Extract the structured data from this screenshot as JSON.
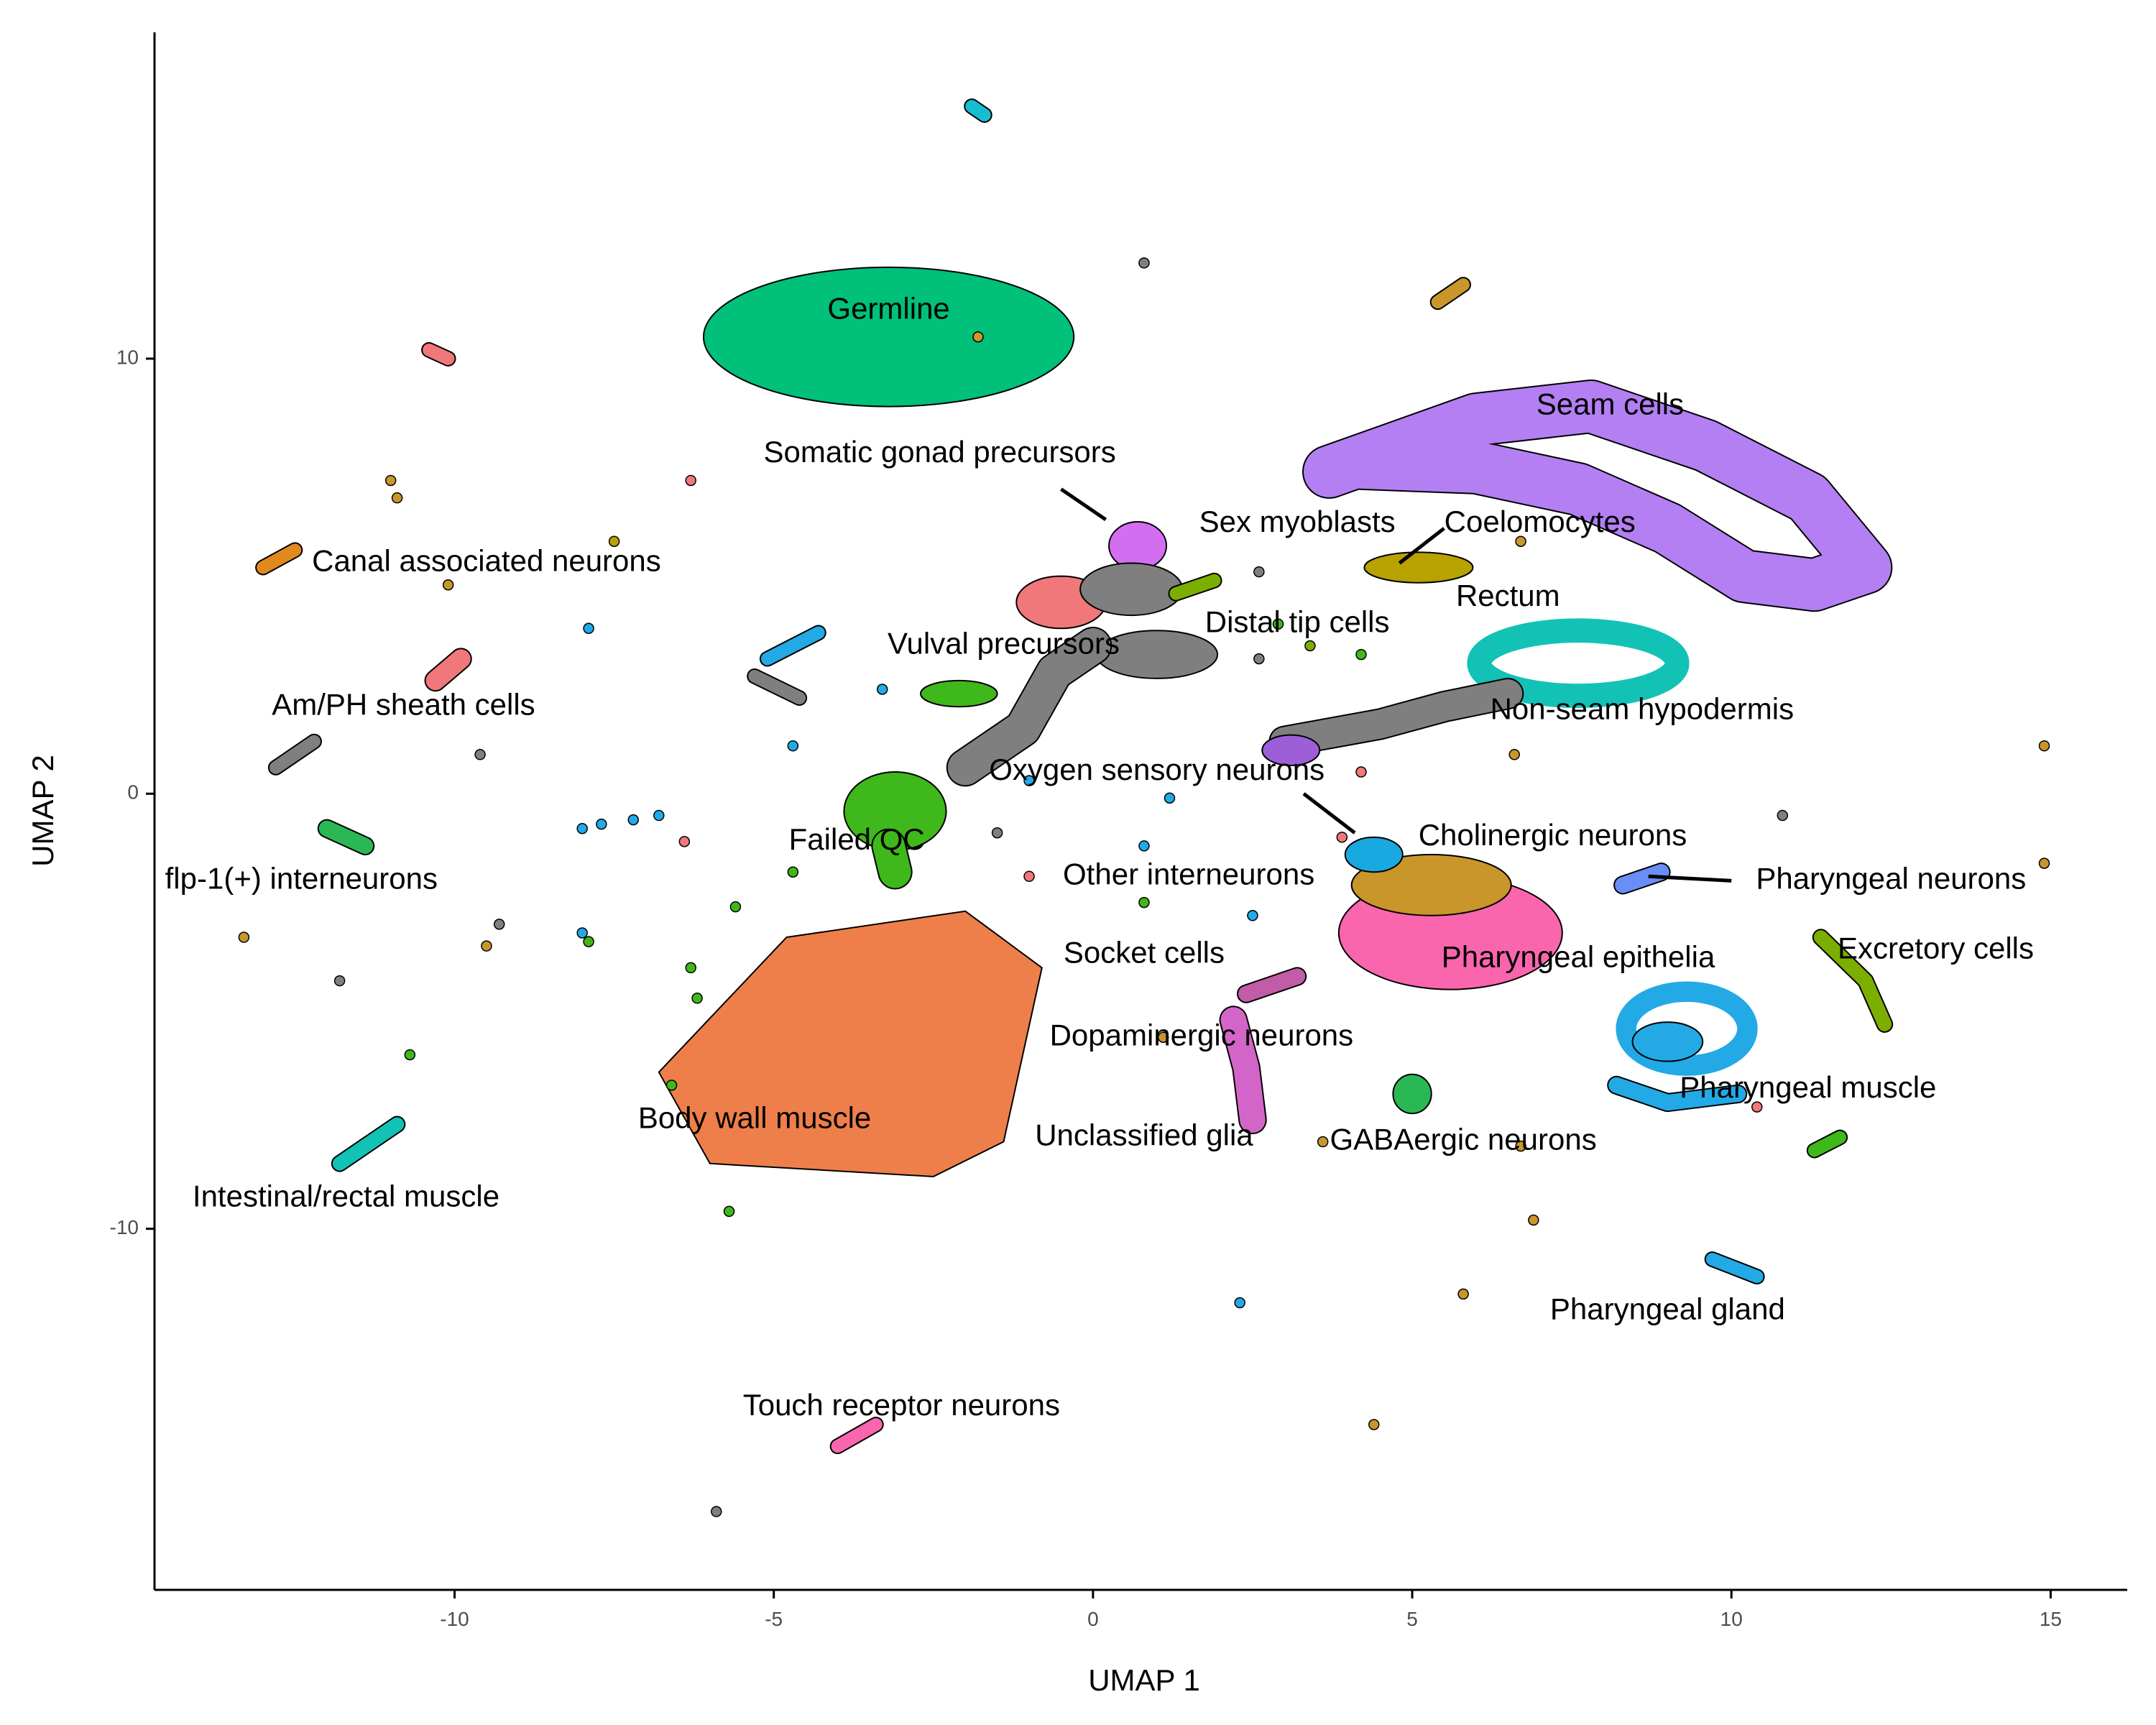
{
  "chart_data": {
    "type": "scatter",
    "title": "",
    "xlabel": "UMAP 1",
    "ylabel": "UMAP 2",
    "xlim": [
      -14.7,
      16.2
    ],
    "ylim": [
      -18.3,
      17.5
    ],
    "xticks": [
      -10,
      -5,
      0,
      5,
      10,
      15
    ],
    "yticks": [
      -10,
      0,
      10
    ],
    "xtick_labels": [
      "-10",
      "-5",
      "0",
      "5",
      "10",
      "15"
    ],
    "ytick_labels": [
      "-10",
      "0",
      "10"
    ],
    "grid": false,
    "legend": "none",
    "labels": [
      {
        "text": "Germline",
        "x": -3.2,
        "y": 11.1
      },
      {
        "text": "Seam cells",
        "x": 8.1,
        "y": 8.9
      },
      {
        "text": "Somatic gonad precursors",
        "x": -2.4,
        "y": 7.8
      },
      {
        "text": "Sex myoblasts",
        "x": 3.2,
        "y": 6.2
      },
      {
        "text": "Coelomocytes",
        "x": 7.0,
        "y": 6.2
      },
      {
        "text": "Canal associated neurons",
        "x": -9.5,
        "y": 5.3
      },
      {
        "text": "Rectum",
        "x": 6.5,
        "y": 4.5
      },
      {
        "text": "Distal tip cells",
        "x": 3.2,
        "y": 3.9
      },
      {
        "text": "Vulval precursors",
        "x": -1.4,
        "y": 3.4
      },
      {
        "text": "Am/PH sheath cells",
        "x": -10.8,
        "y": 2.0
      },
      {
        "text": "Non-seam hypodermis",
        "x": 8.6,
        "y": 1.9
      },
      {
        "text": "Oxygen sensory neurons",
        "x": 1.0,
        "y": 0.5
      },
      {
        "text": "Failed QC",
        "x": -3.7,
        "y": -1.1
      },
      {
        "text": "Cholinergic neurons",
        "x": 7.2,
        "y": -1.0
      },
      {
        "text": "flp-1(+) interneurons",
        "x": -12.4,
        "y": -2.0
      },
      {
        "text": "Other interneurons",
        "x": 1.5,
        "y": -1.9
      },
      {
        "text": "Pharyngeal neurons",
        "x": 12.5,
        "y": -2.0
      },
      {
        "text": "Socket cells",
        "x": 0.8,
        "y": -3.7
      },
      {
        "text": "Excretory cells",
        "x": 13.2,
        "y": -3.6
      },
      {
        "text": "Pharyngeal epithelia",
        "x": 7.6,
        "y": -3.8
      },
      {
        "text": "Dopaminergic neurons",
        "x": 1.7,
        "y": -5.6
      },
      {
        "text": "Pharyngeal muscle",
        "x": 11.2,
        "y": -6.8
      },
      {
        "text": "Body wall muscle",
        "x": -5.3,
        "y": -7.5
      },
      {
        "text": "Unclassified glia",
        "x": 0.8,
        "y": -7.9
      },
      {
        "text": "GABAergic neurons",
        "x": 5.8,
        "y": -8.0
      },
      {
        "text": "Intestinal/rectal muscle",
        "x": -11.7,
        "y": -9.3
      },
      {
        "text": "Pharyngeal gland",
        "x": 9.0,
        "y": -11.9
      },
      {
        "text": "Touch receptor neurons",
        "x": -3.0,
        "y": -14.1
      }
    ],
    "leader_lines": [
      {
        "x1": -0.5,
        "y1": 7.0,
        "x2": 0.2,
        "y2": 6.3
      },
      {
        "x1": 5.5,
        "y1": 6.1,
        "x2": 4.8,
        "y2": 5.3
      },
      {
        "x1": 3.3,
        "y1": -0.0,
        "x2": 4.1,
        "y2": -0.9
      },
      {
        "x1": 10.0,
        "y1": -2.0,
        "x2": 8.7,
        "y2": -1.9
      }
    ],
    "clusters": [
      {
        "shape": "ellipse",
        "cx": -3.2,
        "cy": 10.5,
        "rx": 2.9,
        "ry": 1.6,
        "color": "#00c07a"
      },
      {
        "shape": "polygon",
        "points": [
          [
            -6.8,
            -6.4
          ],
          [
            -4.8,
            -3.3
          ],
          [
            -2.0,
            -2.7
          ],
          [
            -0.8,
            -4.0
          ],
          [
            -1.4,
            -8.0
          ],
          [
            -2.5,
            -8.8
          ],
          [
            -6.0,
            -8.5
          ]
        ],
        "color": "#ee7f4b"
      },
      {
        "shape": "band",
        "points": [
          [
            3.7,
            7.4
          ],
          [
            6.0,
            8.6
          ],
          [
            7.8,
            8.9
          ],
          [
            9.6,
            8.0
          ],
          [
            11.2,
            6.8
          ],
          [
            12.1,
            5.2
          ],
          [
            11.3,
            4.8
          ],
          [
            10.2,
            5.0
          ],
          [
            9.0,
            6.1
          ],
          [
            7.6,
            7.0
          ],
          [
            6.0,
            7.5
          ],
          [
            4.2,
            7.6
          ]
        ],
        "width": 0.8,
        "color": "#b37ff2"
      },
      {
        "shape": "ellipse",
        "cx": 5.1,
        "cy": 5.2,
        "rx": 0.85,
        "ry": 0.35,
        "color": "#b8a200"
      },
      {
        "shape": "ellipse",
        "cx": 0.7,
        "cy": 5.7,
        "rx": 0.45,
        "ry": 0.55,
        "color": "#d46ef0"
      },
      {
        "shape": "ellipse",
        "cx": -0.5,
        "cy": 4.4,
        "rx": 0.7,
        "ry": 0.6,
        "color": "#f0787a"
      },
      {
        "shape": "ellipse",
        "cx": 0.6,
        "cy": 4.7,
        "rx": 0.8,
        "ry": 0.6,
        "color": "#7f7f7f"
      },
      {
        "shape": "ellipse",
        "cx": 1.0,
        "cy": 3.2,
        "rx": 0.95,
        "ry": 0.55,
        "color": "#7f7f7f"
      },
      {
        "shape": "band",
        "points": [
          [
            -2.0,
            0.6
          ],
          [
            -1.1,
            1.5
          ],
          [
            -0.6,
            2.8
          ],
          [
            0.0,
            3.4
          ]
        ],
        "width": 0.55,
        "color": "#7f7f7f"
      },
      {
        "shape": "ellipse",
        "cx": -3.1,
        "cy": -0.4,
        "rx": 0.8,
        "ry": 0.9,
        "color": "#3eb81a"
      },
      {
        "shape": "band",
        "points": [
          [
            -3.2,
            -1.2
          ],
          [
            -3.1,
            -1.8
          ]
        ],
        "width": 0.5,
        "color": "#3eb81a"
      },
      {
        "shape": "ellipse",
        "cx": -2.1,
        "cy": 2.3,
        "rx": 0.6,
        "ry": 0.3,
        "color": "#3eb81a"
      },
      {
        "shape": "ring",
        "cx": 7.6,
        "cy": 3.0,
        "rx": 1.55,
        "ry": 0.75,
        "width": 0.38,
        "color": "#12c2b5"
      },
      {
        "shape": "band",
        "points": [
          [
            3.0,
            1.2
          ],
          [
            4.5,
            1.6
          ],
          [
            5.5,
            2.0
          ],
          [
            6.5,
            2.3
          ]
        ],
        "width": 0.45,
        "color": "#7f7f7f"
      },
      {
        "shape": "ellipse",
        "cx": 3.1,
        "cy": 1.0,
        "rx": 0.45,
        "ry": 0.35,
        "color": "#9c5fd8"
      },
      {
        "shape": "ellipse",
        "cx": 5.6,
        "cy": -3.2,
        "rx": 1.75,
        "ry": 1.3,
        "color": "#fa66ad"
      },
      {
        "shape": "ellipse",
        "cx": 5.3,
        "cy": -2.1,
        "rx": 1.25,
        "ry": 0.7,
        "color": "#c8962a"
      },
      {
        "shape": "ellipse",
        "cx": 4.4,
        "cy": -1.4,
        "rx": 0.45,
        "ry": 0.4,
        "color": "#1aa8e0"
      },
      {
        "shape": "ring",
        "cx": 9.3,
        "cy": -5.4,
        "rx": 0.95,
        "ry": 0.85,
        "width": 0.32,
        "color": "#22a9e6"
      },
      {
        "shape": "ellipse",
        "cx": 9.0,
        "cy": -5.7,
        "rx": 0.55,
        "ry": 0.45,
        "color": "#22a9e6"
      },
      {
        "shape": "band",
        "points": [
          [
            8.2,
            -6.7
          ],
          [
            9.0,
            -7.1
          ],
          [
            10.1,
            -6.9
          ]
        ],
        "width": 0.25,
        "color": "#22a9e6"
      },
      {
        "shape": "band",
        "points": [
          [
            2.4,
            -4.6
          ],
          [
            3.2,
            -4.2
          ]
        ],
        "width": 0.25,
        "color": "#c25ba8"
      },
      {
        "shape": "band",
        "points": [
          [
            2.2,
            -5.2
          ],
          [
            2.4,
            -6.3
          ],
          [
            2.5,
            -7.5
          ]
        ],
        "width": 0.4,
        "color": "#d465c8"
      },
      {
        "shape": "ellipse",
        "cx": 5.0,
        "cy": -6.9,
        "rx": 0.3,
        "ry": 0.45,
        "color": "#2ab854"
      },
      {
        "shape": "band",
        "points": [
          [
            8.3,
            -2.1
          ],
          [
            8.9,
            -1.8
          ]
        ],
        "width": 0.25,
        "color": "#6a8ef7"
      },
      {
        "shape": "band",
        "points": [
          [
            11.4,
            -3.3
          ],
          [
            12.1,
            -4.3
          ],
          [
            12.4,
            -5.3
          ]
        ],
        "width": 0.22,
        "color": "#7cae00"
      },
      {
        "shape": "band",
        "points": [
          [
            -1.9,
            15.8
          ],
          [
            -1.7,
            15.6
          ]
        ],
        "width": 0.2,
        "color": "#17becf"
      },
      {
        "shape": "band",
        "points": [
          [
            -5.1,
            3.1
          ],
          [
            -4.3,
            3.7
          ]
        ],
        "width": 0.2,
        "color": "#22a9e6"
      },
      {
        "shape": "band",
        "points": [
          [
            -5.3,
            2.7
          ],
          [
            -4.6,
            2.2
          ]
        ],
        "width": 0.2,
        "color": "#7f7f7f"
      },
      {
        "shape": "band",
        "points": [
          [
            -13.0,
            5.2
          ],
          [
            -12.5,
            5.6
          ]
        ],
        "width": 0.2,
        "color": "#e08a1e"
      },
      {
        "shape": "band",
        "points": [
          [
            -12.8,
            0.6
          ],
          [
            -12.2,
            1.2
          ]
        ],
        "width": 0.2,
        "color": "#7f7f7f"
      },
      {
        "shape": "band",
        "points": [
          [
            -10.3,
            2.6
          ],
          [
            -9.9,
            3.1
          ]
        ],
        "width": 0.3,
        "color": "#f0787a"
      },
      {
        "shape": "band",
        "points": [
          [
            -12.0,
            -0.8
          ],
          [
            -11.4,
            -1.2
          ]
        ],
        "width": 0.25,
        "color": "#2ab854"
      },
      {
        "shape": "band",
        "points": [
          [
            -11.8,
            -8.5
          ],
          [
            -10.9,
            -7.6
          ]
        ],
        "width": 0.22,
        "color": "#12c2b5"
      },
      {
        "shape": "band",
        "points": [
          [
            -4.0,
            -15.0
          ],
          [
            -3.4,
            -14.5
          ]
        ],
        "width": 0.2,
        "color": "#fa66ad"
      },
      {
        "shape": "band",
        "points": [
          [
            9.7,
            -10.7
          ],
          [
            10.4,
            -11.1
          ]
        ],
        "width": 0.2,
        "color": "#22a9e6"
      },
      {
        "shape": "band",
        "points": [
          [
            -10.4,
            10.2
          ],
          [
            -10.1,
            10.0
          ]
        ],
        "width": 0.2,
        "color": "#f0787a"
      },
      {
        "shape": "band",
        "points": [
          [
            5.4,
            11.3
          ],
          [
            5.8,
            11.7
          ]
        ],
        "width": 0.2,
        "color": "#c8962a"
      },
      {
        "shape": "band",
        "points": [
          [
            11.3,
            -8.2
          ],
          [
            11.7,
            -7.9
          ]
        ],
        "width": 0.2,
        "color": "#3eb81a"
      },
      {
        "shape": "band",
        "points": [
          [
            1.3,
            4.6
          ],
          [
            1.9,
            4.9
          ]
        ],
        "width": 0.2,
        "color": "#7cae00"
      }
    ],
    "points": [
      {
        "x": 0.8,
        "y": 12.2,
        "color": "#7f7f7f"
      },
      {
        "x": -1.8,
        "y": 10.5,
        "color": "#c8962a"
      },
      {
        "x": -6.3,
        "y": 7.2,
        "color": "#f0787a"
      },
      {
        "x": -11.0,
        "y": 7.2,
        "color": "#c8962a"
      },
      {
        "x": -10.9,
        "y": 6.8,
        "color": "#c8962a"
      },
      {
        "x": -7.5,
        "y": 5.8,
        "color": "#b8a200"
      },
      {
        "x": -10.1,
        "y": 4.8,
        "color": "#c8962a"
      },
      {
        "x": -7.9,
        "y": 3.8,
        "color": "#22a9e6"
      },
      {
        "x": -9.6,
        "y": 0.9,
        "color": "#7f7f7f"
      },
      {
        "x": -4.7,
        "y": 1.1,
        "color": "#22a9e6"
      },
      {
        "x": -3.3,
        "y": 2.4,
        "color": "#22a9e6"
      },
      {
        "x": -8.0,
        "y": -0.8,
        "color": "#22a9e6"
      },
      {
        "x": -7.7,
        "y": -0.7,
        "color": "#22a9e6"
      },
      {
        "x": -7.2,
        "y": -0.6,
        "color": "#22a9e6"
      },
      {
        "x": -6.8,
        "y": -0.5,
        "color": "#22a9e6"
      },
      {
        "x": -6.4,
        "y": -1.1,
        "color": "#f0787a"
      },
      {
        "x": -4.7,
        "y": -1.8,
        "color": "#3eb81a"
      },
      {
        "x": -9.3,
        "y": -3.0,
        "color": "#7f7f7f"
      },
      {
        "x": -9.5,
        "y": -3.5,
        "color": "#c8962a"
      },
      {
        "x": -13.3,
        "y": -3.3,
        "color": "#c8962a"
      },
      {
        "x": -8.0,
        "y": -3.2,
        "color": "#22a9e6"
      },
      {
        "x": -7.9,
        "y": -3.4,
        "color": "#3eb81a"
      },
      {
        "x": -11.8,
        "y": -4.3,
        "color": "#7f7f7f"
      },
      {
        "x": -10.7,
        "y": -6.0,
        "color": "#3eb81a"
      },
      {
        "x": -5.7,
        "y": -9.6,
        "color": "#3eb81a"
      },
      {
        "x": -5.9,
        "y": -16.5,
        "color": "#7f7f7f"
      },
      {
        "x": 3.6,
        "y": -8.0,
        "color": "#c8962a"
      },
      {
        "x": 6.7,
        "y": -8.1,
        "color": "#c8962a"
      },
      {
        "x": 6.9,
        "y": -9.8,
        "color": "#c8962a"
      },
      {
        "x": 5.8,
        "y": -11.5,
        "color": "#c8962a"
      },
      {
        "x": 2.3,
        "y": -11.7,
        "color": "#22a9e6"
      },
      {
        "x": 4.4,
        "y": -14.5,
        "color": "#c8962a"
      },
      {
        "x": 10.8,
        "y": -0.5,
        "color": "#7f7f7f"
      },
      {
        "x": 14.9,
        "y": 1.1,
        "color": "#c8962a"
      },
      {
        "x": 14.9,
        "y": -1.6,
        "color": "#c8962a"
      },
      {
        "x": 10.4,
        "y": -7.2,
        "color": "#f0787a"
      },
      {
        "x": 1.2,
        "y": -0.1,
        "color": "#22a9e6"
      },
      {
        "x": -1.0,
        "y": -1.9,
        "color": "#f0787a"
      },
      {
        "x": 0.8,
        "y": -1.2,
        "color": "#22a9e6"
      },
      {
        "x": 0.8,
        "y": -2.5,
        "color": "#3eb81a"
      },
      {
        "x": 2.5,
        "y": -2.8,
        "color": "#22a9e6"
      },
      {
        "x": 6.6,
        "y": 0.9,
        "color": "#c8962a"
      },
      {
        "x": 6.7,
        "y": 5.8,
        "color": "#c8962a"
      },
      {
        "x": 2.6,
        "y": 5.1,
        "color": "#7f7f7f"
      },
      {
        "x": 2.6,
        "y": 3.1,
        "color": "#7f7f7f"
      },
      {
        "x": 3.4,
        "y": 3.4,
        "color": "#7cae00"
      },
      {
        "x": 4.2,
        "y": 3.2,
        "color": "#3eb81a"
      },
      {
        "x": 4.2,
        "y": 0.5,
        "color": "#f0787a"
      },
      {
        "x": 3.9,
        "y": -1.0,
        "color": "#f0787a"
      },
      {
        "x": -1.5,
        "y": -0.9,
        "color": "#7f7f7f"
      },
      {
        "x": -1.0,
        "y": 0.3,
        "color": "#22a9e6"
      },
      {
        "x": -5.6,
        "y": -2.6,
        "color": "#3eb81a"
      },
      {
        "x": -6.3,
        "y": -4.0,
        "color": "#3eb81a"
      },
      {
        "x": -6.2,
        "y": -4.7,
        "color": "#3eb81a"
      },
      {
        "x": -6.6,
        "y": -6.7,
        "color": "#3eb81a"
      },
      {
        "x": 1.1,
        "y": -5.6,
        "color": "#c8962a"
      },
      {
        "x": 2.9,
        "y": 3.9,
        "color": "#3eb81a"
      }
    ]
  }
}
